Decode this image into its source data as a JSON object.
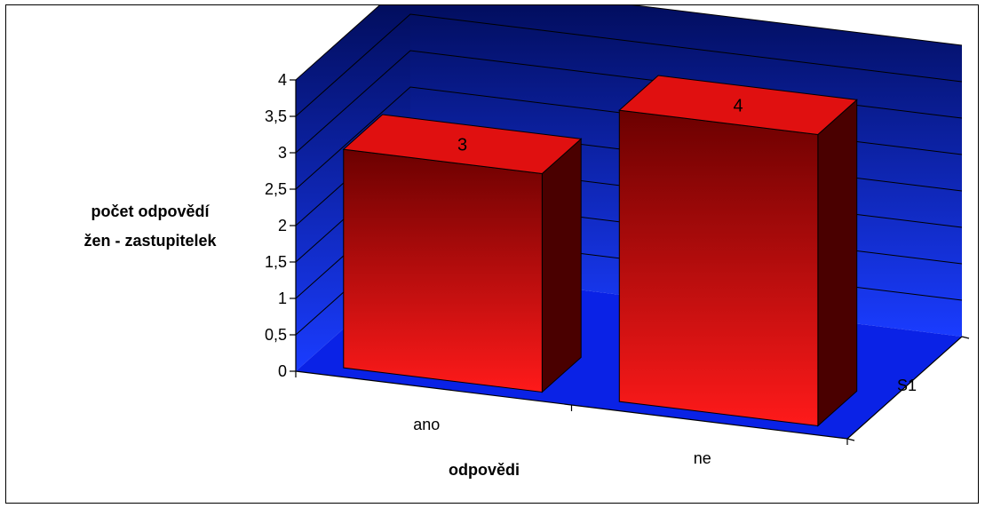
{
  "chart_data": {
    "type": "bar",
    "categories": [
      "ano",
      "ne"
    ],
    "series": [
      {
        "name": "S1",
        "values": [
          3,
          4
        ]
      }
    ],
    "data_labels": [
      "3",
      "4"
    ],
    "xlabel": "odpovědi",
    "ylabel_lines": [
      "počet odpovědí",
      "žen - zastupitelek"
    ],
    "ylim": [
      0,
      4
    ],
    "y_ticks": [
      "0",
      "0,5",
      "1",
      "1,5",
      "2",
      "2,5",
      "3",
      "3,5",
      "4"
    ],
    "y_tick_values": [
      0,
      0.5,
      1,
      1.5,
      2,
      2.5,
      3,
      3.5,
      4
    ],
    "grid": true,
    "three_d": true,
    "colors": {
      "wall_top": "#000a52",
      "wall_bottom": "#1a3cff",
      "floor": "#0a22e6",
      "bar_front_top": "#6b0000",
      "bar_front_bottom": "#ff1a1a",
      "bar_top": "#e01010",
      "bar_side": "#4a0000"
    }
  }
}
